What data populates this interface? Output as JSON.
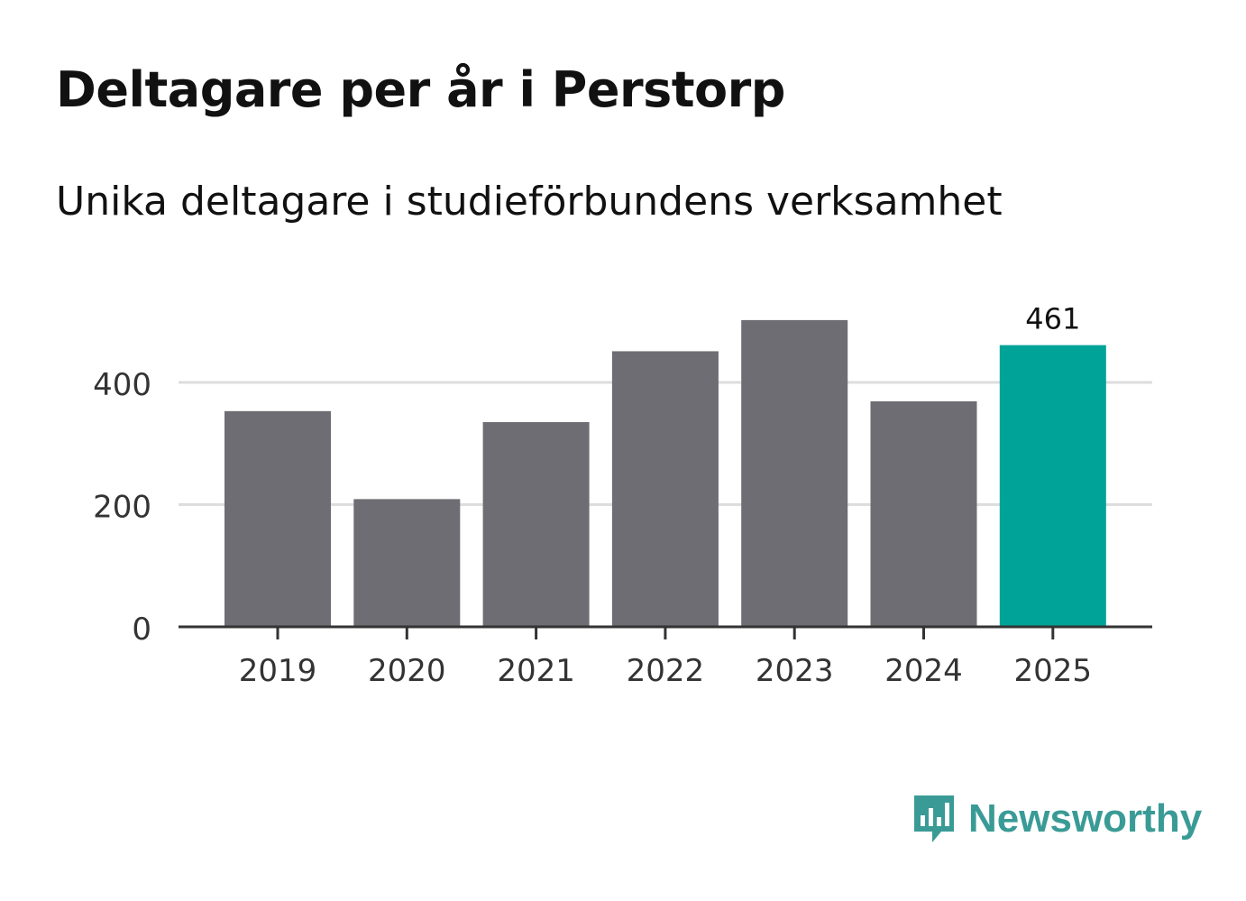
{
  "title": "Deltagare per år i Perstorp",
  "subtitle": "Unika deltagare i studieförbundens verksamhet",
  "brand": {
    "name": "Newsworthy",
    "icon": "bar-chart-speech-bubble-icon",
    "color": "#3a9b96"
  },
  "chart_data": {
    "type": "bar",
    "categories": [
      "2019",
      "2020",
      "2021",
      "2022",
      "2023",
      "2024",
      "2025"
    ],
    "values": [
      353,
      209,
      335,
      451,
      502,
      369,
      461
    ],
    "highlight_index": 6,
    "highlight_label": "461",
    "ylim": [
      0,
      560
    ],
    "yticks": [
      0,
      200,
      400
    ],
    "ytick_labels": [
      "0",
      "200",
      "400"
    ],
    "xlabel": "",
    "ylabel": "",
    "grid": true,
    "colors": {
      "bar": "#6e6d73",
      "highlight": "#00a398",
      "grid": "#dddddd",
      "axis": "#333333",
      "tick_text": "#333333"
    }
  }
}
